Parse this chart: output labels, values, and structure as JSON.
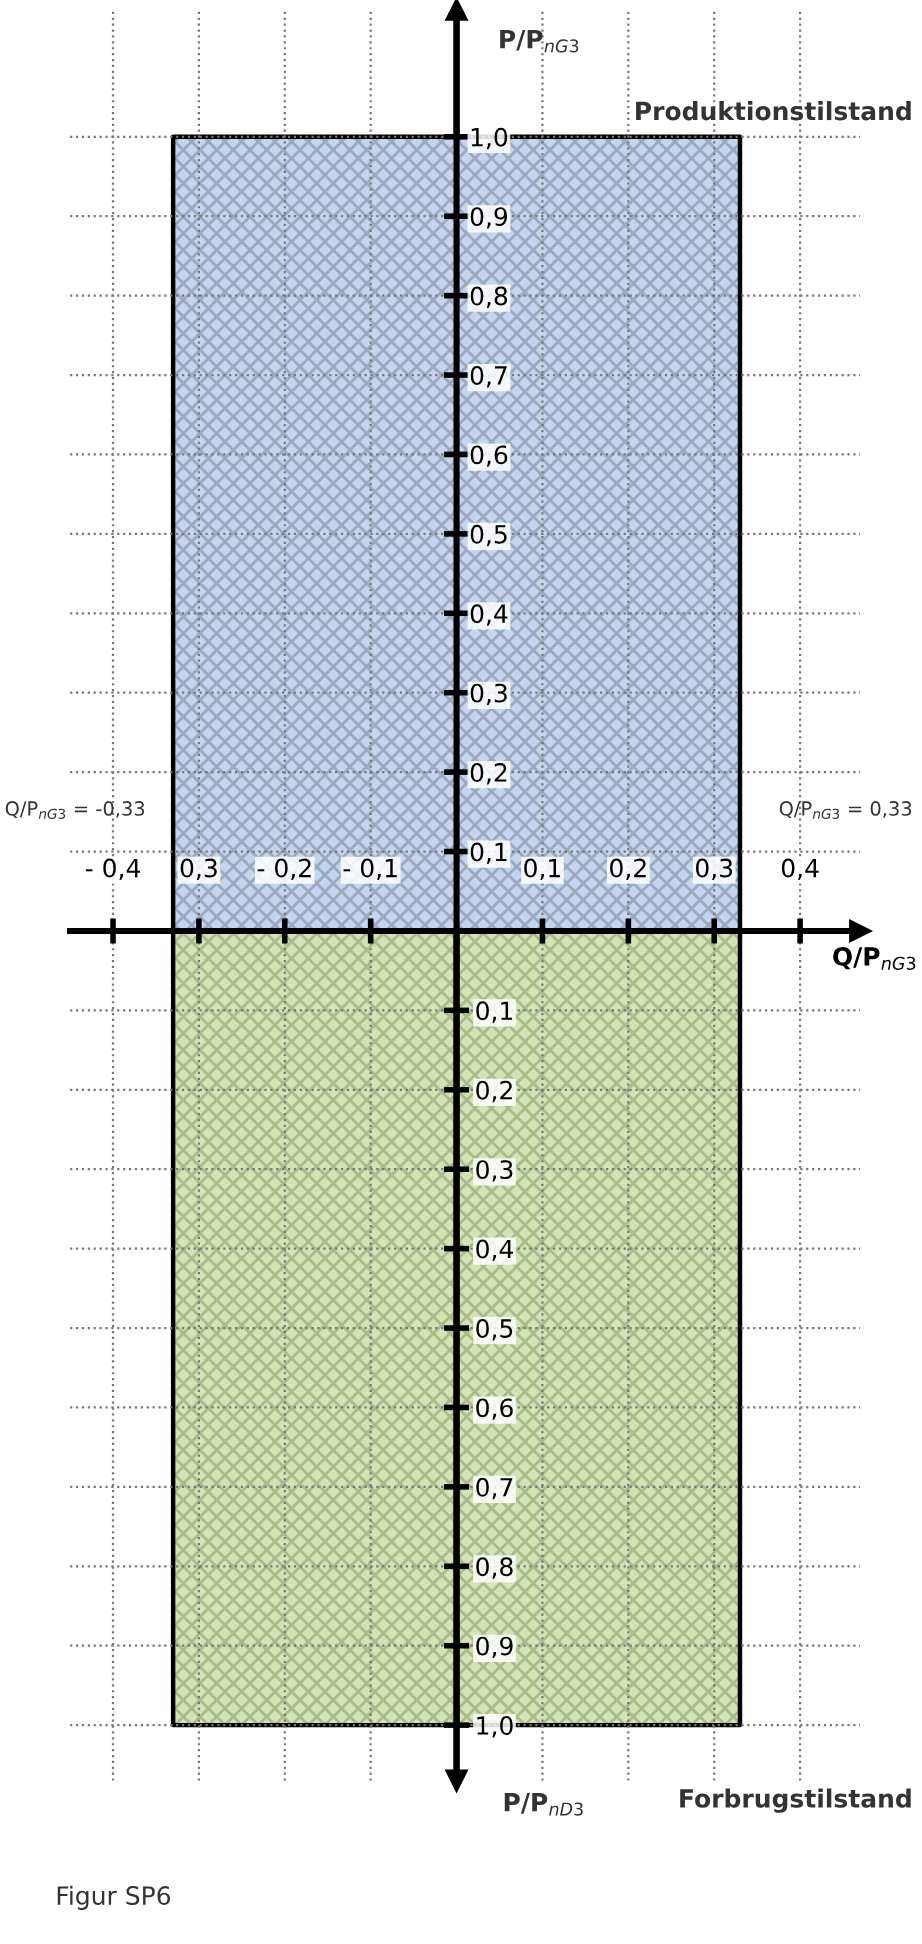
{
  "chart_data": {
    "type": "area",
    "xlabel": "Q/P$_{nG3}$",
    "x": [
      -0.33,
      0.33
    ],
    "series": [
      {
        "color": "#c5d5ef",
        "values": [
          1.0,
          1.0
        ]
      },
      {
        "color": "#d3e3b5",
        "values": [
          1.0,
          1.0
        ],
        "axis": "y2"
      }
    ],
    "xlim": [
      -0.45,
      0.47
    ],
    "ylim": [
      -1.07,
      1.16
    ],
    "y2lim": [
      1.07,
      -1.16
    ],
    "xticks": [
      {
        "value": -0.4,
        "label": "- 0,4"
      },
      {
        "value": -0.3,
        "label": "0,3"
      },
      {
        "value": -0.2,
        "label": "- 0,2"
      },
      {
        "value": -0.1,
        "label": "- 0,1"
      },
      {
        "value": 0.1,
        "label": "0,1"
      },
      {
        "value": 0.2,
        "label": "0,2"
      },
      {
        "value": 0.3,
        "label": "0,3"
      },
      {
        "value": 0.4,
        "label": "0,4"
      }
    ],
    "yticks": [
      {
        "value": 0.1,
        "label": "0,1"
      },
      {
        "value": 0.2,
        "label": "0,2"
      },
      {
        "value": 0.3,
        "label": "0,3"
      },
      {
        "value": 0.4,
        "label": "0,4"
      },
      {
        "value": 0.5,
        "label": "0,5"
      },
      {
        "value": 0.6,
        "label": "0,6"
      },
      {
        "value": 0.7,
        "label": "0,7"
      },
      {
        "value": 0.8,
        "label": "0,8"
      },
      {
        "value": 0.9,
        "label": "0,9"
      },
      {
        "value": 1.0,
        "label": "1,0"
      }
    ],
    "y2ticks": [
      {
        "value": 0.1,
        "label": "0,1"
      },
      {
        "value": 0.2,
        "label": "0,2"
      },
      {
        "value": 0.3,
        "label": "0,3"
      },
      {
        "value": 0.4,
        "label": "0,4"
      },
      {
        "value": 0.5,
        "label": "0,5"
      },
      {
        "value": 0.6,
        "label": "0,6"
      },
      {
        "value": 0.7,
        "label": "0,7"
      },
      {
        "value": 0.8,
        "label": "0,8"
      },
      {
        "value": 0.9,
        "label": "0,9"
      },
      {
        "value": 1.0,
        "label": "1,0"
      }
    ],
    "grid": true,
    "line_style": "dotted",
    "annotations": [
      "Produktionstilstand",
      "Forbrugstilstand",
      "Q/P$_{nG3}$ = -0,33",
      "Q/P$_{nG3}$ = 0,33",
      "Figur SP6",
      "P/P$_{nG3}$",
      "P/P$_{nD3}$"
    ]
  }
}
